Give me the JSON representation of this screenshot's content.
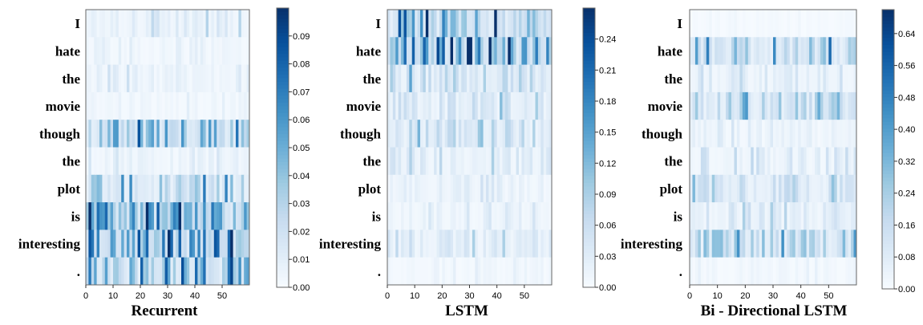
{
  "chart_data": [
    {
      "type": "heatmap",
      "xlabel": "Recurrent",
      "rows": [
        "I",
        "hate",
        "the",
        "movie",
        "though",
        "the",
        "plot",
        "is",
        "interesting",
        "."
      ],
      "x_ticks": [
        0,
        10,
        20,
        30,
        40,
        50
      ],
      "x_range": [
        0,
        60
      ],
      "colorbar_ticks": [
        0.0,
        0.01,
        0.02,
        0.03,
        0.04,
        0.05,
        0.06,
        0.07,
        0.08,
        0.09
      ],
      "colorbar_tick_labels": [
        "0.00",
        "0.01",
        "0.02",
        "0.03",
        "0.04",
        "0.05",
        "0.06",
        "0.07",
        "0.08",
        "0.09"
      ],
      "value_range": [
        0.0,
        0.1
      ],
      "row_mean_intensity": [
        0.01,
        0.004,
        0.007,
        0.004,
        0.035,
        0.006,
        0.025,
        0.045,
        0.05,
        0.03
      ],
      "colormap": [
        "#f7fbff",
        "#deebf7",
        "#c6dbef",
        "#9ecae1",
        "#6baed6",
        "#4292c6",
        "#2171b5",
        "#08519c",
        "#08306b"
      ]
    },
    {
      "type": "heatmap",
      "xlabel": "LSTM",
      "rows": [
        "I",
        "hate",
        "the",
        "movie",
        "though",
        "the",
        "plot",
        "is",
        "interesting",
        "."
      ],
      "x_ticks": [
        0,
        10,
        20,
        30,
        40,
        50
      ],
      "x_range": [
        0,
        60
      ],
      "colorbar_ticks": [
        0.0,
        0.03,
        0.06,
        0.09,
        0.12,
        0.15,
        0.18,
        0.21,
        0.24
      ],
      "colorbar_tick_labels": [
        "0.00",
        "0.03",
        "0.06",
        "0.09",
        "0.12",
        "0.15",
        "0.18",
        "0.21",
        "0.24"
      ],
      "value_range": [
        0.0,
        0.27
      ],
      "row_mean_intensity": [
        0.09,
        0.12,
        0.055,
        0.04,
        0.05,
        0.03,
        0.02,
        0.018,
        0.03,
        0.01
      ],
      "colormap": [
        "#f7fbff",
        "#deebf7",
        "#c6dbef",
        "#9ecae1",
        "#6baed6",
        "#4292c6",
        "#2171b5",
        "#08519c",
        "#08306b"
      ]
    },
    {
      "type": "heatmap",
      "xlabel": "Bi - Directional LSTM",
      "rows": [
        "I",
        "hate",
        "the",
        "movie",
        "though",
        "the",
        "plot",
        "is",
        "interesting",
        "."
      ],
      "x_ticks": [
        0,
        10,
        20,
        30,
        40,
        50
      ],
      "x_range": [
        0,
        60
      ],
      "colorbar_ticks": [
        0.0,
        0.08,
        0.16,
        0.24,
        0.32,
        0.4,
        0.48,
        0.56,
        0.64
      ],
      "colorbar_tick_labels": [
        "0.00",
        "0.08",
        "0.16",
        "0.24",
        "0.32",
        "0.40",
        "0.48",
        "0.56",
        "0.64"
      ],
      "value_range": [
        0.0,
        0.7
      ],
      "row_mean_intensity": [
        0.01,
        0.18,
        0.07,
        0.15,
        0.04,
        0.06,
        0.13,
        0.08,
        0.17,
        0.02
      ],
      "colormap": [
        "#f7fbff",
        "#deebf7",
        "#c6dbef",
        "#9ecae1",
        "#6baed6",
        "#4292c6",
        "#2171b5",
        "#08519c",
        "#08306b"
      ]
    }
  ]
}
